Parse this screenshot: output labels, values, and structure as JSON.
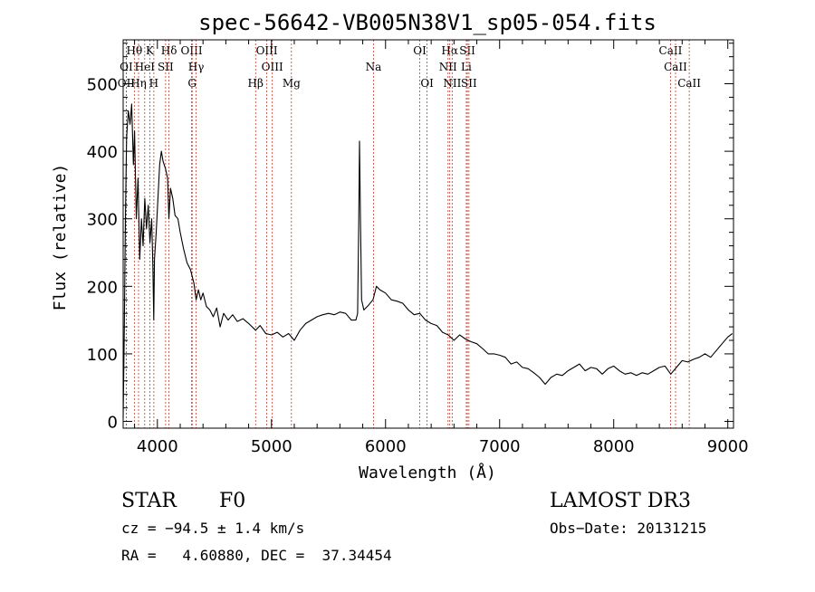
{
  "chart_data": {
    "type": "line",
    "title": "spec-56642-VB005N38V1_sp05-054.fits",
    "xlabel": "Wavelength (Å)",
    "ylabel": "Flux (relative)",
    "xlim": [
      3700,
      9050
    ],
    "ylim": [
      -10,
      565
    ],
    "xticks": [
      4000,
      5000,
      6000,
      7000,
      8000,
      9000
    ],
    "yticks": [
      0,
      100,
      200,
      300,
      400,
      500
    ],
    "grid": false,
    "series": [
      {
        "points": [
          [
            3700,
            5
          ],
          [
            3710,
            140
          ],
          [
            3720,
            300
          ],
          [
            3730,
            420
          ],
          [
            3745,
            460
          ],
          [
            3760,
            440
          ],
          [
            3775,
            470
          ],
          [
            3790,
            380
          ],
          [
            3800,
            430
          ],
          [
            3815,
            300
          ],
          [
            3830,
            360
          ],
          [
            3845,
            240
          ],
          [
            3860,
            300
          ],
          [
            3875,
            260
          ],
          [
            3890,
            330
          ],
          [
            3905,
            285
          ],
          [
            3920,
            320
          ],
          [
            3935,
            265
          ],
          [
            3950,
            300
          ],
          [
            3960,
            230
          ],
          [
            3968,
            150
          ],
          [
            3975,
            240
          ],
          [
            3990,
            280
          ],
          [
            4005,
            330
          ],
          [
            4020,
            380
          ],
          [
            4035,
            400
          ],
          [
            4050,
            385
          ],
          [
            4070,
            375
          ],
          [
            4090,
            360
          ],
          [
            4101,
            300
          ],
          [
            4115,
            345
          ],
          [
            4135,
            330
          ],
          [
            4155,
            305
          ],
          [
            4180,
            300
          ],
          [
            4200,
            280
          ],
          [
            4230,
            255
          ],
          [
            4260,
            235
          ],
          [
            4290,
            225
          ],
          [
            4320,
            205
          ],
          [
            4340,
            180
          ],
          [
            4360,
            195
          ],
          [
            4380,
            180
          ],
          [
            4400,
            190
          ],
          [
            4430,
            170
          ],
          [
            4460,
            165
          ],
          [
            4490,
            155
          ],
          [
            4520,
            168
          ],
          [
            4550,
            140
          ],
          [
            4580,
            160
          ],
          [
            4620,
            150
          ],
          [
            4660,
            158
          ],
          [
            4700,
            148
          ],
          [
            4750,
            152
          ],
          [
            4800,
            145
          ],
          [
            4861,
            135
          ],
          [
            4900,
            142
          ],
          [
            4950,
            130
          ],
          [
            5000,
            128
          ],
          [
            5050,
            132
          ],
          [
            5100,
            125
          ],
          [
            5150,
            130
          ],
          [
            5200,
            120
          ],
          [
            5250,
            135
          ],
          [
            5300,
            145
          ],
          [
            5350,
            150
          ],
          [
            5400,
            155
          ],
          [
            5450,
            158
          ],
          [
            5500,
            160
          ],
          [
            5550,
            158
          ],
          [
            5600,
            162
          ],
          [
            5650,
            160
          ],
          [
            5700,
            150
          ],
          [
            5740,
            150
          ],
          [
            5755,
            160
          ],
          [
            5765,
            300
          ],
          [
            5772,
            415
          ],
          [
            5780,
            305
          ],
          [
            5790,
            180
          ],
          [
            5810,
            165
          ],
          [
            5850,
            172
          ],
          [
            5890,
            180
          ],
          [
            5920,
            200
          ],
          [
            5950,
            195
          ],
          [
            6000,
            190
          ],
          [
            6050,
            180
          ],
          [
            6100,
            178
          ],
          [
            6150,
            175
          ],
          [
            6200,
            165
          ],
          [
            6250,
            158
          ],
          [
            6300,
            160
          ],
          [
            6350,
            150
          ],
          [
            6400,
            145
          ],
          [
            6450,
            142
          ],
          [
            6500,
            132
          ],
          [
            6550,
            128
          ],
          [
            6600,
            120
          ],
          [
            6650,
            128
          ],
          [
            6700,
            122
          ],
          [
            6750,
            118
          ],
          [
            6800,
            115
          ],
          [
            6850,
            108
          ],
          [
            6900,
            100
          ],
          [
            6950,
            100
          ],
          [
            7000,
            98
          ],
          [
            7050,
            95
          ],
          [
            7100,
            85
          ],
          [
            7150,
            88
          ],
          [
            7200,
            80
          ],
          [
            7250,
            78
          ],
          [
            7300,
            72
          ],
          [
            7350,
            65
          ],
          [
            7400,
            55
          ],
          [
            7450,
            65
          ],
          [
            7500,
            70
          ],
          [
            7550,
            68
          ],
          [
            7600,
            75
          ],
          [
            7650,
            80
          ],
          [
            7700,
            85
          ],
          [
            7750,
            75
          ],
          [
            7800,
            80
          ],
          [
            7850,
            78
          ],
          [
            7900,
            70
          ],
          [
            7950,
            78
          ],
          [
            8000,
            82
          ],
          [
            8050,
            75
          ],
          [
            8100,
            70
          ],
          [
            8150,
            72
          ],
          [
            8200,
            68
          ],
          [
            8250,
            72
          ],
          [
            8300,
            70
          ],
          [
            8350,
            75
          ],
          [
            8400,
            80
          ],
          [
            8450,
            82
          ],
          [
            8500,
            70
          ],
          [
            8550,
            80
          ],
          [
            8600,
            90
          ],
          [
            8650,
            88
          ],
          [
            8700,
            92
          ],
          [
            8750,
            95
          ],
          [
            8800,
            100
          ],
          [
            8850,
            95
          ],
          [
            8900,
            105
          ],
          [
            8950,
            115
          ],
          [
            9000,
            125
          ],
          [
            9040,
            130
          ]
        ]
      }
    ],
    "line_markers": [
      {
        "label": "OII",
        "wavelength": 3727,
        "row": 3
      },
      {
        "label": "OI",
        "wavelength": 3727,
        "row": 2
      },
      {
        "label": "Hθ",
        "wavelength": 3798,
        "row": 1
      },
      {
        "label": "Hη",
        "wavelength": 3835,
        "row": 3
      },
      {
        "label": "HeI",
        "wavelength": 3889,
        "row": 2
      },
      {
        "label": "K",
        "wavelength": 3934,
        "row": 1
      },
      {
        "label": "H",
        "wavelength": 3969,
        "row": 3
      },
      {
        "label": "SII",
        "wavelength": 4072,
        "row": 2
      },
      {
        "label": "Hδ",
        "wavelength": 4102,
        "row": 1
      },
      {
        "label": "OIII",
        "wavelength": 4300,
        "row": 1
      },
      {
        "label": "Hγ",
        "wavelength": 4340,
        "row": 2
      },
      {
        "label": "G",
        "wavelength": 4305,
        "row": 3
      },
      {
        "label": "Hβ",
        "wavelength": 4861,
        "row": 3
      },
      {
        "label": "OIII",
        "wavelength": 4959,
        "row": 1
      },
      {
        "label": "OIII",
        "wavelength": 5007,
        "row": 2
      },
      {
        "label": "Mg",
        "wavelength": 5175,
        "row": 3
      },
      {
        "label": "Na",
        "wavelength": 5894,
        "row": 2
      },
      {
        "label": "OI",
        "wavelength": 6300,
        "row": 1
      },
      {
        "label": "OI",
        "wavelength": 6364,
        "row": 3
      },
      {
        "label": "Hα",
        "wavelength": 6563,
        "row": 1
      },
      {
        "label": "NII",
        "wavelength": 6548,
        "row": 2
      },
      {
        "label": "NII",
        "wavelength": 6584,
        "row": 3
      },
      {
        "label": "SII",
        "wavelength": 6717,
        "row": 1
      },
      {
        "label": "Li",
        "wavelength": 6708,
        "row": 2
      },
      {
        "label": "SII",
        "wavelength": 6731,
        "row": 3
      },
      {
        "label": "CaII",
        "wavelength": 8498,
        "row": 1
      },
      {
        "label": "CaII",
        "wavelength": 8542,
        "row": 2
      },
      {
        "label": "CaII",
        "wavelength": 8662,
        "row": 3
      }
    ]
  },
  "info": {
    "class": "STAR",
    "subclass": "F0",
    "survey": "LAMOST DR3",
    "cz": "cz = −94.5 ± 1.4 km/s",
    "obs_date": "Obs−Date: 20131215",
    "coords": "RA =   4.60880, DEC =  37.34454"
  }
}
